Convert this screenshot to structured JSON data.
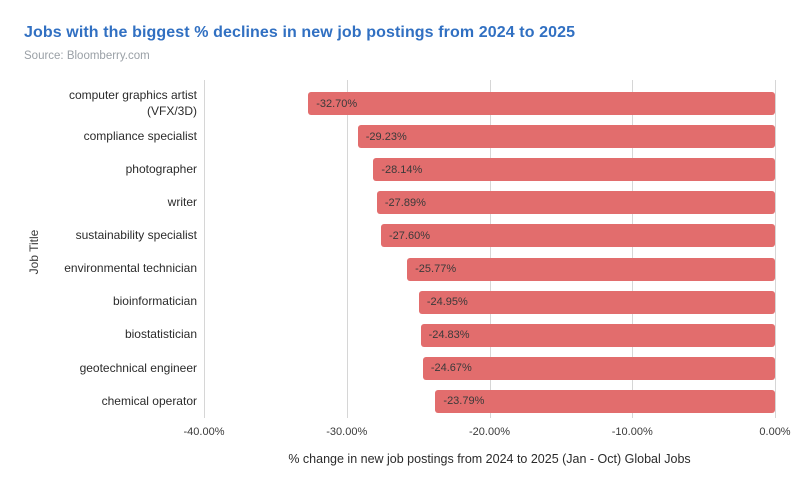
{
  "header": {
    "title": "Jobs with the biggest % declines in new job postings from 2024 to 2025",
    "title_color": "#3170c2",
    "source": "Source: Bloomberry.com"
  },
  "chart_data": {
    "type": "bar",
    "orientation": "horizontal",
    "title": "Jobs with the biggest % declines in new job postings from 2024 to 2025",
    "xlabel": "% change in new job postings from 2024 to 2025 (Jan - Oct) Global Jobs",
    "ylabel": "Job Title",
    "xlim": [
      -40,
      0
    ],
    "x_ticks": [
      "-40.00%",
      "-30.00%",
      "-20.00%",
      "-10.00%",
      "0.00%"
    ],
    "grid": true,
    "legend": false,
    "bar_color": "#e26d6d",
    "categories": [
      "computer graphics artist (VFX/3D)",
      "compliance specialist",
      "photographer",
      "writer",
      "sustainability specialist",
      "environmental technician",
      "bioinformatician",
      "biostatistician",
      "geotechnical engineer",
      "chemical operator"
    ],
    "values": [
      -32.7,
      -29.23,
      -28.14,
      -27.89,
      -27.6,
      -25.77,
      -24.95,
      -24.83,
      -24.67,
      -23.79
    ],
    "value_labels": [
      "-32.70%",
      "-29.23%",
      "-28.14%",
      "-27.89%",
      "-27.60%",
      "-25.77%",
      "-24.95%",
      "-24.83%",
      "-24.67%",
      "-23.79%"
    ]
  }
}
